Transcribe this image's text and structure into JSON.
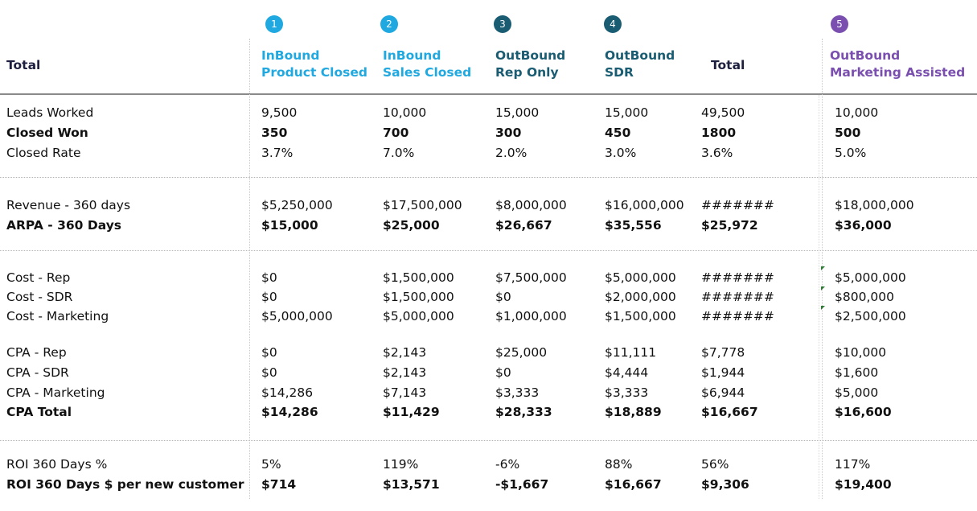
{
  "header": {
    "row_title": "Total",
    "columns": [
      {
        "badge": "1",
        "badge_color": "#20a9e0",
        "line1": "InBound",
        "line2": "Product Closed",
        "color": "#20a9e0"
      },
      {
        "badge": "2",
        "badge_color": "#20a9e0",
        "line1": "InBound",
        "line2": "Sales Closed",
        "color": "#20a9e0"
      },
      {
        "badge": "3",
        "badge_color": "#1a5c72",
        "line1": "OutBound",
        "line2": "Rep Only",
        "color": "#1a5c72"
      },
      {
        "badge": "4",
        "badge_color": "#1a5c72",
        "line1": "OutBound",
        "line2": "SDR",
        "color": "#1a5c72"
      },
      {
        "badge": "",
        "badge_color": "",
        "line1": "Total",
        "line2": "",
        "color": "#1c1f3d"
      },
      {
        "badge": "5",
        "badge_color": "#7a4fb0",
        "line1": "OutBound",
        "line2": "Marketing Assisted",
        "color": "#7a4fb0"
      }
    ]
  },
  "rows": [
    {
      "label": "Leads Worked",
      "bold": false,
      "values": [
        "9,500",
        "10,000",
        "15,000",
        "15,000",
        "49,500",
        "10,000"
      ]
    },
    {
      "label": "Closed Won",
      "bold": true,
      "values": [
        "350",
        "700",
        "300",
        "450",
        "1800",
        "500"
      ]
    },
    {
      "label": "Closed Rate",
      "bold": false,
      "values": [
        "3.7%",
        "7.0%",
        "2.0%",
        "3.0%",
        "3.6%",
        "5.0%"
      ]
    },
    {
      "label": "Revenue - 360 days",
      "bold": false,
      "values": [
        "$5,250,000",
        "$17,500,000",
        "$8,000,000",
        "$16,000,000",
        "#######",
        "$18,000,000"
      ]
    },
    {
      "label": "ARPA - 360 Days",
      "bold": true,
      "values": [
        "$15,000",
        "$25,000",
        "$26,667",
        "$35,556",
        "$25,972",
        "$36,000"
      ]
    },
    {
      "label": "Cost - Rep",
      "bold": false,
      "values": [
        "$0",
        "$1,500,000",
        "$7,500,000",
        "$5,000,000",
        "#######",
        "$5,000,000"
      ]
    },
    {
      "label": "Cost - SDR",
      "bold": false,
      "values": [
        "$0",
        "$1,500,000",
        "$0",
        "$2,000,000",
        "#######",
        "$800,000"
      ]
    },
    {
      "label": "Cost - Marketing",
      "bold": false,
      "values": [
        "$5,000,000",
        "$5,000,000",
        "$1,000,000",
        "$1,500,000",
        "#######",
        "$2,500,000"
      ]
    },
    {
      "label": "CPA - Rep",
      "bold": false,
      "values": [
        "$0",
        "$2,143",
        "$25,000",
        "$11,111",
        "$7,778",
        "$10,000"
      ]
    },
    {
      "label": "CPA - SDR",
      "bold": false,
      "values": [
        "$0",
        "$2,143",
        "$0",
        "$4,444",
        "$1,944",
        "$1,600"
      ]
    },
    {
      "label": "CPA - Marketing",
      "bold": false,
      "values": [
        "$14,286",
        "$7,143",
        "$3,333",
        "$3,333",
        "$6,944",
        "$5,000"
      ]
    },
    {
      "label": "CPA Total",
      "bold": true,
      "values": [
        "$14,286",
        "$11,429",
        "$28,333",
        "$18,889",
        "$16,667",
        "$16,600"
      ]
    },
    {
      "label": "ROI 360 Days %",
      "bold": false,
      "values": [
        "5%",
        "119%",
        "-6%",
        "88%",
        "56%",
        "117%"
      ]
    },
    {
      "label": "ROI 360 Days $ per new customer",
      "bold": true,
      "values": [
        "$714",
        "$13,571",
        "-$1,667",
        "$16,667",
        "$9,306",
        "$19,400"
      ]
    }
  ]
}
